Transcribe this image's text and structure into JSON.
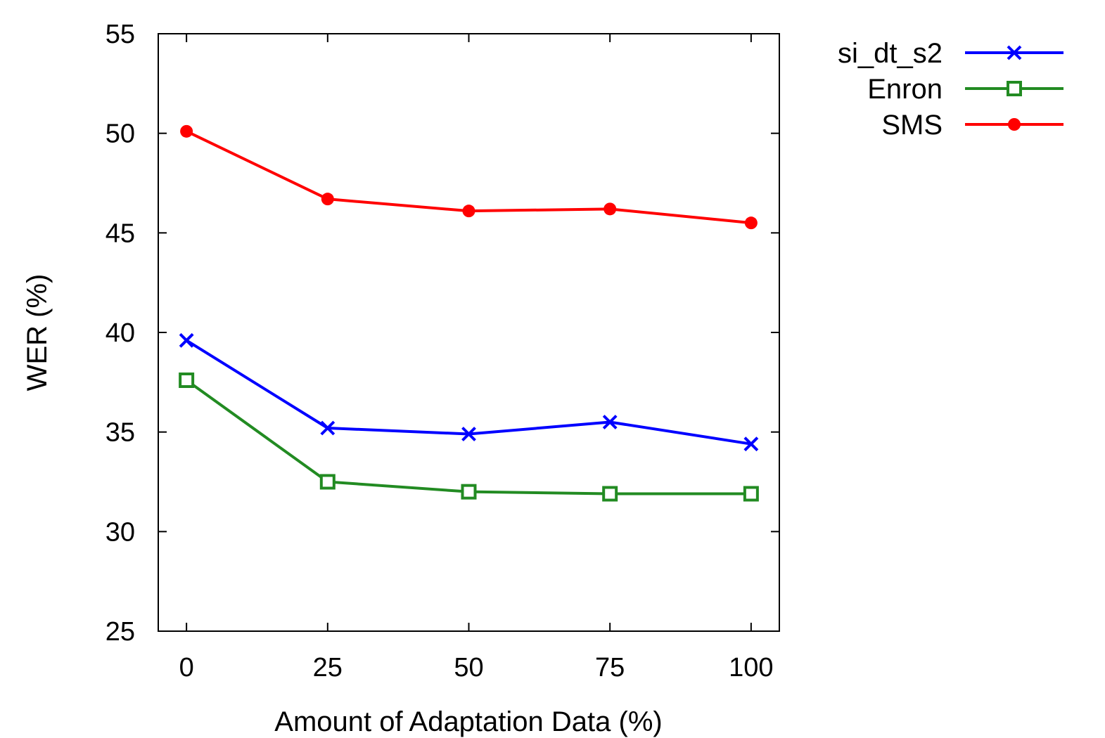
{
  "chart_data": {
    "type": "line",
    "title": "",
    "xlabel": "Amount of Adaptation Data (%)",
    "ylabel": "WER (%)",
    "x": [
      0,
      25,
      50,
      75,
      100
    ],
    "x_tick_labels": [
      "0",
      "25",
      "50",
      "75",
      "100"
    ],
    "y_tick_labels": [
      "25",
      "30",
      "35",
      "40",
      "45",
      "50",
      "55"
    ],
    "xlim": [
      -5,
      105
    ],
    "ylim": [
      25,
      55
    ],
    "yticks": [
      25,
      30,
      35,
      40,
      45,
      50,
      55
    ],
    "grid": false,
    "legend_position": "outside-top-right",
    "series": [
      {
        "name": "si_dt_s2",
        "values": [
          39.6,
          35.2,
          34.9,
          35.5,
          34.4
        ],
        "color": "#0000ff",
        "marker": "x-icon"
      },
      {
        "name": "Enron",
        "values": [
          37.6,
          32.5,
          32.0,
          31.9,
          31.9
        ],
        "color": "#228b22",
        "marker": "open-square-icon"
      },
      {
        "name": "SMS",
        "values": [
          50.1,
          46.7,
          46.1,
          46.2,
          45.5
        ],
        "color": "#ff0000",
        "marker": "filled-circle-icon"
      }
    ]
  }
}
